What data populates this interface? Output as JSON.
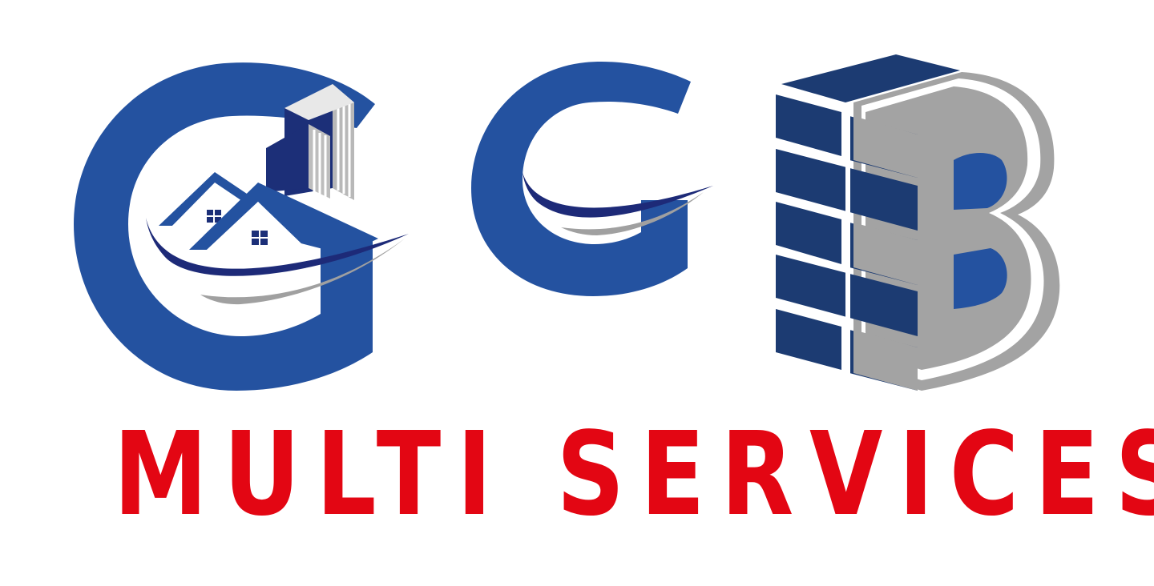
{
  "brand": {
    "letters": [
      "G",
      "G",
      "B"
    ],
    "tagline": "MULTI SERVICES",
    "colors": {
      "blue": "#2452A0",
      "navy": "#1C3B72",
      "swoosh": "#1D2A78",
      "gray": "#9E9E9E",
      "red": "#E30613",
      "background": "#FFFFFF"
    }
  }
}
